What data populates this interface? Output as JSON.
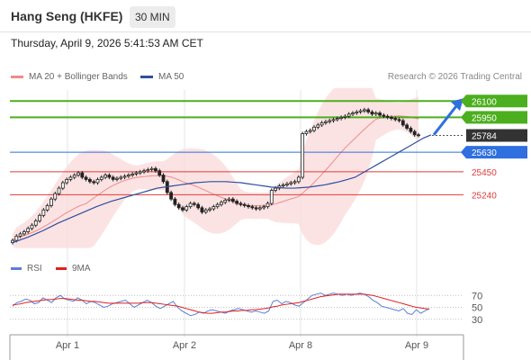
{
  "header": {
    "title": "Hang Seng (HKFE)",
    "timeframe": "30 MIN",
    "timestamp": "Thursday, April 9, 2026 5:41:53 AM CET"
  },
  "legend": {
    "bollinger_label": "MA 20 + Bollinger Bands",
    "ma50_label": "MA 50",
    "credit": "Research © 2026 Trading Central",
    "bollinger_color": "#f08a8a",
    "ma50_color": "#2d4f9e"
  },
  "chart_data": [
    {
      "type": "candlestick",
      "title": "Hang Seng (HKFE)",
      "x_tick_labels": [
        "Apr 1",
        "Apr 2",
        "Apr 8",
        "Apr 9"
      ],
      "price_range": [
        24780,
        26160
      ],
      "current_price": 25784,
      "levels": [
        {
          "value": 26100,
          "label": "26100",
          "role": "resistance",
          "color": "#4caf1e"
        },
        {
          "value": 25950,
          "label": "25950",
          "role": "resistance",
          "color": "#4caf1e"
        },
        {
          "value": 25784,
          "label": "25784",
          "role": "last-price",
          "color": "#333333"
        },
        {
          "value": 25630,
          "label": "25630",
          "role": "pivot",
          "color": "#2f6fe0"
        },
        {
          "value": 25450,
          "label": "25450",
          "role": "support",
          "color": "#e23a3a"
        },
        {
          "value": 25240,
          "label": "25240",
          "role": "support",
          "color": "#e23a3a"
        }
      ],
      "forecast": "bullish arrow toward 26100",
      "close_series": [
        24820,
        24860,
        24880,
        24900,
        24930,
        24960,
        25000,
        25050,
        25100,
        25140,
        25200,
        25250,
        25300,
        25350,
        25380,
        25400,
        25420,
        25440,
        25400,
        25380,
        25360,
        25350,
        25380,
        25400,
        25420,
        25400,
        25380,
        25390,
        25400,
        25410,
        25420,
        25430,
        25440,
        25450,
        25460,
        25470,
        25480,
        25460,
        25420,
        25360,
        25260,
        25200,
        25150,
        25120,
        25100,
        25130,
        25160,
        25150,
        25120,
        25080,
        25100,
        25110,
        25130,
        25150,
        25170,
        25190,
        25200,
        25180,
        25160,
        25150,
        25140,
        25130,
        25120,
        25110,
        25120,
        25130,
        25160,
        25280,
        25300,
        25320,
        25330,
        25340,
        25350,
        25360,
        25400,
        25800,
        25820,
        25830,
        25860,
        25880,
        25900,
        25910,
        25920,
        25930,
        25940,
        25950,
        25960,
        25980,
        25990,
        26000,
        26010,
        26020,
        26000,
        25980,
        25990,
        25970,
        25960,
        25950,
        25940,
        25930,
        25920,
        25880,
        25850,
        25820,
        25790,
        25784
      ],
      "ma50_series": [
        24800,
        24825,
        24850,
        24880,
        24910,
        24945,
        24980,
        25010,
        25040,
        25070,
        25100,
        25130,
        25155,
        25180,
        25200,
        25220,
        25240,
        25260,
        25280,
        25300,
        25310,
        25320,
        25330,
        25340,
        25350,
        25355,
        25360,
        25360,
        25360,
        25355,
        25350,
        25340,
        25330,
        25320,
        25310,
        25305,
        25300,
        25300,
        25305,
        25310,
        25320,
        25330,
        25345,
        25360,
        25380,
        25400,
        25440,
        25480,
        25520,
        25560,
        25600,
        25640,
        25680,
        25720,
        25760,
        25790
      ]
    },
    {
      "type": "line",
      "title": "RSI",
      "series": [
        {
          "name": "RSI"
        },
        {
          "name": "9MA"
        }
      ],
      "y_ticks": [
        30,
        50,
        70
      ],
      "x_tick_labels": [
        "Apr 1",
        "Apr 2",
        "Apr 8",
        "Apr 9"
      ],
      "rsi_values": [
        52,
        58,
        60,
        64,
        62,
        56,
        58,
        66,
        62,
        58,
        66,
        70,
        64,
        62,
        60,
        66,
        62,
        56,
        60,
        58,
        54,
        50,
        52,
        56,
        58,
        60,
        62,
        56,
        50,
        54,
        58,
        62,
        58,
        52,
        48,
        52,
        56,
        60,
        50,
        44,
        40,
        36,
        38,
        42,
        40,
        44,
        46,
        44,
        42,
        40,
        44,
        46,
        48,
        46,
        44,
        42,
        44,
        42,
        40,
        44,
        60,
        62,
        56,
        60,
        58,
        54,
        52,
        58,
        64,
        70,
        72,
        74,
        70,
        72,
        74,
        72,
        70,
        72,
        70,
        72,
        74,
        72,
        68,
        62,
        58,
        52,
        50,
        48,
        46,
        44,
        48,
        40,
        38,
        46,
        40,
        44,
        48
      ],
      "ma_values": [
        54,
        55,
        56,
        58,
        59,
        60,
        61,
        62,
        63,
        63,
        64,
        65,
        65,
        64,
        63,
        62,
        62,
        61,
        60,
        60,
        59,
        58,
        57,
        57,
        57,
        57,
        57,
        57,
        57,
        57,
        58,
        58,
        58,
        57,
        56,
        55,
        54,
        53,
        52,
        50,
        48,
        46,
        44,
        42,
        41,
        40,
        40,
        41,
        42,
        42,
        43,
        44,
        44,
        45,
        45,
        46,
        46,
        47,
        48,
        49,
        51,
        52,
        54,
        55,
        56,
        57,
        58,
        60,
        62,
        64,
        66,
        68,
        69,
        70,
        71,
        72,
        72,
        72,
        72,
        72,
        72,
        72,
        71,
        70,
        68,
        66,
        64,
        62,
        60,
        58,
        56,
        54,
        52,
        50,
        49,
        48,
        47
      ]
    }
  ],
  "rsi_legend": {
    "rsi_label": "RSI",
    "ma_label": "9MA",
    "rsi_color": "#5b7fd6",
    "ma_color": "#e02020"
  }
}
